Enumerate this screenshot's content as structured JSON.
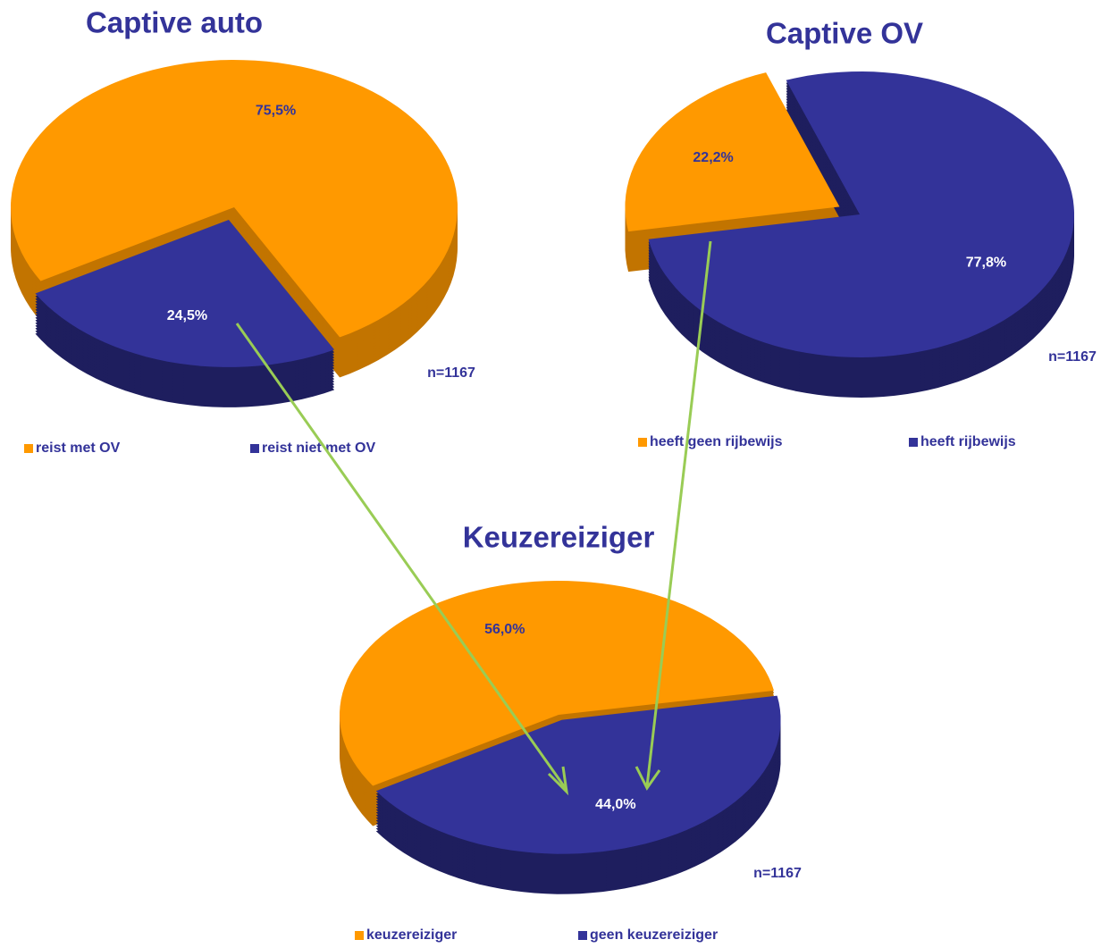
{
  "chart_data": [
    {
      "type": "pie",
      "title": "Captive auto",
      "categories": [
        "reist met OV",
        "reist niet met OV"
      ],
      "values": [
        75.5,
        24.5
      ],
      "value_labels": [
        "75,5%",
        "24,5%"
      ],
      "colors": [
        "#ff9900",
        "#333399"
      ],
      "annotation": "n=1167"
    },
    {
      "type": "pie",
      "title": "Captive OV",
      "categories": [
        "heeft geen rijbewijs",
        "heeft rijbewijs"
      ],
      "values": [
        22.2,
        77.8
      ],
      "value_labels": [
        "22,2%",
        "77,8%"
      ],
      "colors": [
        "#ff9900",
        "#333399"
      ],
      "annotation": "n=1167"
    },
    {
      "type": "pie",
      "title": "Keuzereiziger",
      "categories": [
        "keuzereiziger",
        "geen keuzereiziger"
      ],
      "values": [
        56.0,
        44.0
      ],
      "value_labels": [
        "56,0%",
        "44,0%"
      ],
      "colors": [
        "#ff9900",
        "#333399"
      ],
      "annotation": "n=1167"
    }
  ]
}
